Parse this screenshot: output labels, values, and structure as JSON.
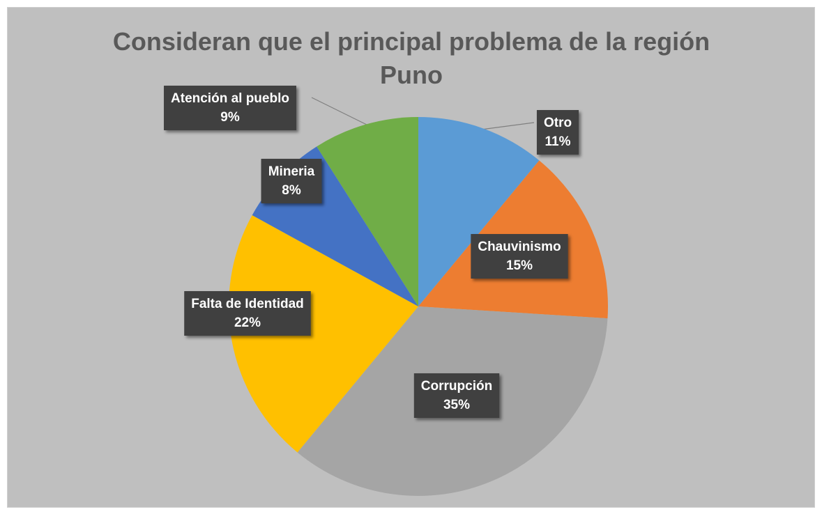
{
  "chart_data": {
    "type": "pie",
    "title": "Consideran que el principal problema de la región Puno",
    "categories": [
      "Otro",
      "Chauvinismo",
      "Corrupción",
      "Falta de Identidad",
      "Mineria",
      "Atención al pueblo"
    ],
    "values": [
      11,
      15,
      35,
      22,
      8,
      9
    ],
    "value_labels": [
      "11%",
      "15%",
      "35%",
      "22%",
      "8%",
      "9%"
    ],
    "colors": [
      "#5b9bd5",
      "#ed7d31",
      "#a5a5a5",
      "#ffc000",
      "#4472c4",
      "#70ad47"
    ]
  }
}
